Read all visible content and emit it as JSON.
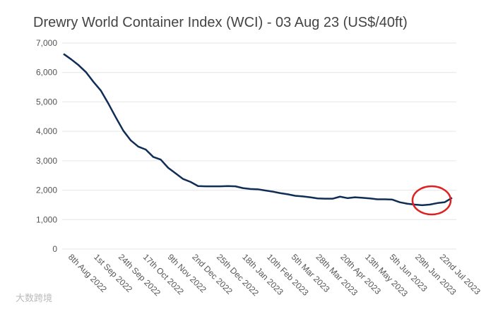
{
  "chart_data": {
    "type": "line",
    "title": "Drewry World Container Index (WCI) - 03 Aug 23 (US$/40ft)",
    "watermark": "大数跨境",
    "x": [
      "2022-08-04",
      "2022-08-11",
      "2022-08-18",
      "2022-08-25",
      "2022-09-01",
      "2022-09-08",
      "2022-09-15",
      "2022-09-22",
      "2022-09-29",
      "2022-10-06",
      "2022-10-13",
      "2022-10-20",
      "2022-10-27",
      "2022-11-03",
      "2022-11-10",
      "2022-11-17",
      "2022-11-24",
      "2022-12-01",
      "2022-12-08",
      "2022-12-15",
      "2022-12-22",
      "2022-12-29",
      "2023-01-05",
      "2023-01-12",
      "2023-01-19",
      "2023-01-26",
      "2023-02-02",
      "2023-02-09",
      "2023-02-16",
      "2023-02-23",
      "2023-03-02",
      "2023-03-09",
      "2023-03-16",
      "2023-03-23",
      "2023-03-30",
      "2023-04-06",
      "2023-04-13",
      "2023-04-20",
      "2023-04-27",
      "2023-05-04",
      "2023-05-11",
      "2023-05-18",
      "2023-05-25",
      "2023-06-01",
      "2023-06-08",
      "2023-06-15",
      "2023-06-22",
      "2023-06-29",
      "2023-07-06",
      "2023-07-13",
      "2023-07-20",
      "2023-07-27",
      "2023-08-03"
    ],
    "series": [
      {
        "name": "WCI",
        "color": "#0f2d55",
        "values": [
          6630,
          6450,
          6250,
          6010,
          5680,
          5380,
          4940,
          4470,
          4020,
          3690,
          3480,
          3380,
          3130,
          3040,
          2760,
          2570,
          2380,
          2280,
          2140,
          2130,
          2130,
          2130,
          2140,
          2130,
          2070,
          2040,
          2030,
          1990,
          1950,
          1900,
          1860,
          1810,
          1790,
          1760,
          1720,
          1710,
          1710,
          1780,
          1730,
          1760,
          1740,
          1720,
          1690,
          1690,
          1680,
          1590,
          1540,
          1510,
          1490,
          1510,
          1560,
          1590,
          1740
        ]
      }
    ],
    "xlim": [
      "2022-08-04",
      "2023-08-03"
    ],
    "xticks": [
      {
        "value": "2022-08-08",
        "label": "8th Aug 2022"
      },
      {
        "value": "2022-09-01",
        "label": "1st Sep 2022"
      },
      {
        "value": "2022-09-24",
        "label": "24th Sep 2022"
      },
      {
        "value": "2022-10-17",
        "label": "17th Oct 2022"
      },
      {
        "value": "2022-11-09",
        "label": "9th Nov 2022"
      },
      {
        "value": "2022-12-02",
        "label": "2nd Dec 2022"
      },
      {
        "value": "2022-12-25",
        "label": "25th Dec 2022"
      },
      {
        "value": "2023-01-18",
        "label": "18th Jan 2023"
      },
      {
        "value": "2023-02-10",
        "label": "10th Feb 2023"
      },
      {
        "value": "2023-03-05",
        "label": "5th Mar 2023"
      },
      {
        "value": "2023-03-28",
        "label": "28th Mar 2023"
      },
      {
        "value": "2023-04-20",
        "label": "20th Apr 2023"
      },
      {
        "value": "2023-05-13",
        "label": "13th May 2023"
      },
      {
        "value": "2023-06-05",
        "label": "5th Jun 2023"
      },
      {
        "value": "2023-06-29",
        "label": "29th Jun 2023"
      },
      {
        "value": "2023-07-22",
        "label": "22nd Jul 2023"
      }
    ],
    "ylim": [
      0,
      7000
    ],
    "yticks": [
      0,
      {
        "value": 1000,
        "label": "1,000"
      },
      {
        "value": 2000,
        "label": "2,000"
      },
      {
        "value": 3000,
        "label": "3,000"
      },
      {
        "value": 4000,
        "label": "4,000"
      },
      {
        "value": 5000,
        "label": "5,000"
      },
      {
        "value": 6000,
        "label": "6,000"
      },
      {
        "value": 7000,
        "label": "7,000"
      }
    ],
    "grid": true
  }
}
